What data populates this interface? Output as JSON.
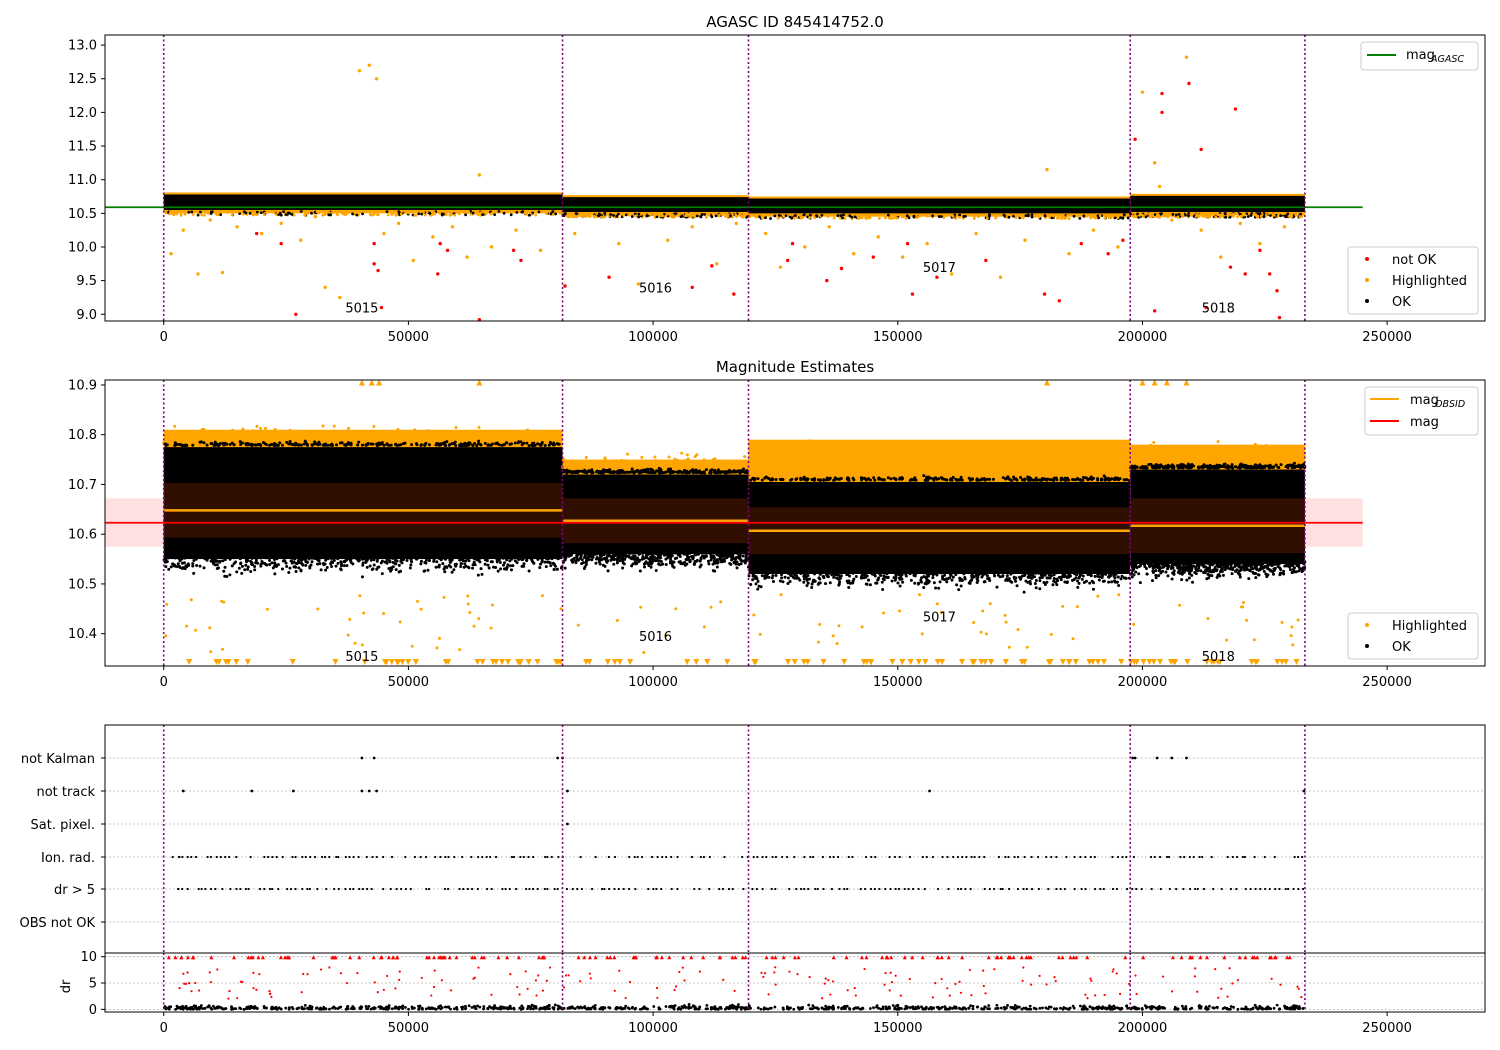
{
  "chart_data": [
    {
      "type": "scatter",
      "title": "AGASC ID 845414752.0",
      "xlim": [
        -12000,
        270000
      ],
      "ylim": [
        8.9,
        13.15
      ],
      "xticks": [
        0,
        50000,
        100000,
        150000,
        200000,
        250000
      ],
      "xtick_labels": [
        "0",
        "50000",
        "100000",
        "150000",
        "200000",
        "250000"
      ],
      "yticks": [
        9.0,
        9.5,
        10.0,
        10.5,
        11.0,
        11.5,
        12.0,
        12.5,
        13.0
      ],
      "ytick_labels": [
        "9.0",
        "9.5",
        "10.0",
        "10.5",
        "11.0",
        "11.5",
        "12.0",
        "12.5",
        "13.0"
      ],
      "obs_boundaries": [
        0,
        81500,
        119500,
        197500,
        233200
      ],
      "obs_labels": [
        {
          "text": "5015",
          "x": 40500,
          "y": 9.1
        },
        {
          "text": "5016",
          "x": 100500,
          "y": 9.4
        },
        {
          "text": "5017",
          "x": 158500,
          "y": 9.7
        },
        {
          "text": "5018",
          "x": 215500,
          "y": 9.1
        }
      ],
      "mag_agasc": 10.59,
      "mag_agasc_xrange": [
        -12000,
        245000
      ],
      "ok_bands": [
        {
          "x": [
            0,
            81500
          ],
          "lo": 10.55,
          "hi": 10.78
        },
        {
          "x": [
            81500,
            119500
          ],
          "lo": 10.52,
          "hi": 10.74
        },
        {
          "x": [
            119500,
            197500
          ],
          "lo": 10.5,
          "hi": 10.72
        },
        {
          "x": [
            197500,
            233200
          ],
          "lo": 10.52,
          "hi": 10.76
        }
      ],
      "highlighted_outliers": [
        {
          "x": 1500,
          "y": 9.9
        },
        {
          "x": 4000,
          "y": 10.25
        },
        {
          "x": 7000,
          "y": 9.6
        },
        {
          "x": 9500,
          "y": 10.4
        },
        {
          "x": 12000,
          "y": 9.62
        },
        {
          "x": 15000,
          "y": 10.3
        },
        {
          "x": 20000,
          "y": 10.2
        },
        {
          "x": 24000,
          "y": 10.35
        },
        {
          "x": 28000,
          "y": 10.1
        },
        {
          "x": 31000,
          "y": 10.45
        },
        {
          "x": 33000,
          "y": 9.4
        },
        {
          "x": 36000,
          "y": 9.25
        },
        {
          "x": 40000,
          "y": 12.62
        },
        {
          "x": 42000,
          "y": 12.7
        },
        {
          "x": 43500,
          "y": 12.5
        },
        {
          "x": 45000,
          "y": 10.2
        },
        {
          "x": 48000,
          "y": 10.35
        },
        {
          "x": 51000,
          "y": 9.8
        },
        {
          "x": 55000,
          "y": 10.15
        },
        {
          "x": 59000,
          "y": 10.3
        },
        {
          "x": 62000,
          "y": 9.85
        },
        {
          "x": 64500,
          "y": 11.07
        },
        {
          "x": 67000,
          "y": 10.0
        },
        {
          "x": 72000,
          "y": 10.25
        },
        {
          "x": 77000,
          "y": 9.95
        },
        {
          "x": 84000,
          "y": 10.2
        },
        {
          "x": 88000,
          "y": 10.45
        },
        {
          "x": 93000,
          "y": 10.05
        },
        {
          "x": 97000,
          "y": 9.45
        },
        {
          "x": 103000,
          "y": 10.1
        },
        {
          "x": 108000,
          "y": 10.3
        },
        {
          "x": 113000,
          "y": 9.75
        },
        {
          "x": 117000,
          "y": 10.35
        },
        {
          "x": 123000,
          "y": 10.2
        },
        {
          "x": 126000,
          "y": 9.7
        },
        {
          "x": 131000,
          "y": 10.0
        },
        {
          "x": 136000,
          "y": 10.3
        },
        {
          "x": 141000,
          "y": 9.9
        },
        {
          "x": 146000,
          "y": 10.15
        },
        {
          "x": 151000,
          "y": 9.85
        },
        {
          "x": 156000,
          "y": 10.05
        },
        {
          "x": 161000,
          "y": 9.6
        },
        {
          "x": 166000,
          "y": 10.2
        },
        {
          "x": 171000,
          "y": 9.55
        },
        {
          "x": 176000,
          "y": 10.1
        },
        {
          "x": 180500,
          "y": 11.15
        },
        {
          "x": 185000,
          "y": 9.9
        },
        {
          "x": 190000,
          "y": 10.25
        },
        {
          "x": 195000,
          "y": 10.0
        },
        {
          "x": 200000,
          "y": 12.3
        },
        {
          "x": 202500,
          "y": 11.25
        },
        {
          "x": 203500,
          "y": 10.9
        },
        {
          "x": 206000,
          "y": 10.4
        },
        {
          "x": 209000,
          "y": 12.82
        },
        {
          "x": 212000,
          "y": 10.25
        },
        {
          "x": 216000,
          "y": 9.85
        },
        {
          "x": 220000,
          "y": 10.35
        },
        {
          "x": 224000,
          "y": 10.05
        },
        {
          "x": 229000,
          "y": 10.3
        }
      ],
      "not_ok_points": [
        {
          "x": 19000,
          "y": 10.2
        },
        {
          "x": 24000,
          "y": 10.05
        },
        {
          "x": 27000,
          "y": 9.0
        },
        {
          "x": 43000,
          "y": 9.75
        },
        {
          "x": 43800,
          "y": 9.65
        },
        {
          "x": 44500,
          "y": 9.1
        },
        {
          "x": 43000,
          "y": 10.05
        },
        {
          "x": 56500,
          "y": 10.05
        },
        {
          "x": 56000,
          "y": 9.6
        },
        {
          "x": 58000,
          "y": 9.95
        },
        {
          "x": 64500,
          "y": 8.92
        },
        {
          "x": 71500,
          "y": 9.95
        },
        {
          "x": 73000,
          "y": 9.8
        },
        {
          "x": 82000,
          "y": 9.42
        },
        {
          "x": 91000,
          "y": 9.55
        },
        {
          "x": 108000,
          "y": 9.4
        },
        {
          "x": 112000,
          "y": 9.72
        },
        {
          "x": 116500,
          "y": 9.3
        },
        {
          "x": 127500,
          "y": 9.8
        },
        {
          "x": 128500,
          "y": 10.05
        },
        {
          "x": 135500,
          "y": 9.5
        },
        {
          "x": 138500,
          "y": 9.68
        },
        {
          "x": 145000,
          "y": 9.85
        },
        {
          "x": 152000,
          "y": 10.05
        },
        {
          "x": 153000,
          "y": 9.3
        },
        {
          "x": 158000,
          "y": 9.55
        },
        {
          "x": 168000,
          "y": 9.8
        },
        {
          "x": 180000,
          "y": 9.3
        },
        {
          "x": 183000,
          "y": 9.2
        },
        {
          "x": 187500,
          "y": 10.05
        },
        {
          "x": 193000,
          "y": 9.9
        },
        {
          "x": 196000,
          "y": 10.1
        },
        {
          "x": 198500,
          "y": 11.6
        },
        {
          "x": 202500,
          "y": 9.05
        },
        {
          "x": 204000,
          "y": 12.28
        },
        {
          "x": 204000,
          "y": 12.0
        },
        {
          "x": 209500,
          "y": 12.43
        },
        {
          "x": 212000,
          "y": 11.45
        },
        {
          "x": 213000,
          "y": 9.1
        },
        {
          "x": 218000,
          "y": 9.7
        },
        {
          "x": 219000,
          "y": 12.05
        },
        {
          "x": 221000,
          "y": 9.6
        },
        {
          "x": 224000,
          "y": 9.95
        },
        {
          "x": 226000,
          "y": 9.6
        },
        {
          "x": 227500,
          "y": 9.35
        },
        {
          "x": 228000,
          "y": 8.95
        }
      ],
      "legends": [
        {
          "position": "upper right",
          "entries": [
            {
              "label": "mag",
              "sub": "AGASC",
              "color": "#008000",
              "kind": "line"
            }
          ]
        },
        {
          "position": "lower right",
          "entries": [
            {
              "label": "not OK",
              "color": "#ff0000",
              "kind": "dot"
            },
            {
              "label": "Highlighted",
              "color": "#ffa500",
              "kind": "dot"
            },
            {
              "label": "OK",
              "color": "#000000",
              "kind": "dot"
            }
          ]
        }
      ]
    },
    {
      "type": "scatter",
      "title": "Magnitude Estimates",
      "xlim": [
        -12000,
        270000
      ],
      "ylim": [
        10.335,
        10.91
      ],
      "xticks": [
        0,
        50000,
        100000,
        150000,
        200000,
        250000
      ],
      "xtick_labels": [
        "0",
        "50000",
        "100000",
        "150000",
        "200000",
        "250000"
      ],
      "yticks": [
        10.4,
        10.5,
        10.6,
        10.7,
        10.8,
        10.9
      ],
      "ytick_labels": [
        "10.4",
        "10.5",
        "10.6",
        "10.7",
        "10.8",
        "10.9"
      ],
      "obs_boundaries": [
        0,
        81500,
        119500,
        197500,
        233200
      ],
      "obs_labels": [
        {
          "text": "5015",
          "x": 40500,
          "y": 10.355
        },
        {
          "text": "5016",
          "x": 100500,
          "y": 10.395
        },
        {
          "text": "5017",
          "x": 158500,
          "y": 10.435
        },
        {
          "text": "5018",
          "x": 215500,
          "y": 10.355
        }
      ],
      "mag": 10.623,
      "mag_band": [
        10.575,
        10.672
      ],
      "mag_xrange": [
        -12000,
        245000
      ],
      "obsid_segments": [
        {
          "x": [
            0,
            81500
          ],
          "mean": 10.648,
          "std": 0.055,
          "ok_lo": 10.52,
          "ok_hi": 10.775,
          "hl_hi": 10.84
        },
        {
          "x": [
            81500,
            119500
          ],
          "mean": 10.627,
          "std": 0.045,
          "ok_lo": 10.53,
          "ok_hi": 10.72,
          "hl_hi": 10.78
        },
        {
          "x": [
            119500,
            197500
          ],
          "mean": 10.607,
          "std": 0.047,
          "ok_lo": 10.49,
          "ok_hi": 10.705,
          "hl_hi": 10.82
        },
        {
          "x": [
            197500,
            233200
          ],
          "mean": 10.617,
          "std": 0.055,
          "ok_lo": 10.51,
          "ok_hi": 10.73,
          "hl_hi": 10.81
        }
      ],
      "legends": [
        {
          "position": "upper right",
          "entries": [
            {
              "label": "mag",
              "sub": "OBSID",
              "color": "#ffa500",
              "kind": "line"
            },
            {
              "label": "mag",
              "sub": "",
              "color": "#ff0000",
              "kind": "line"
            }
          ]
        },
        {
          "position": "lower right",
          "entries": [
            {
              "label": "Highlighted",
              "color": "#ffa500",
              "kind": "dot"
            },
            {
              "label": "OK",
              "color": "#000000",
              "kind": "dot"
            }
          ]
        }
      ]
    },
    {
      "type": "scatter",
      "title": "",
      "xlim": [
        -12000,
        270000
      ],
      "xticks": [
        0,
        50000,
        100000,
        150000,
        200000,
        250000
      ],
      "xtick_labels": [
        "0",
        "50000",
        "100000",
        "150000",
        "200000",
        "250000"
      ],
      "flag_rows": [
        "not Kalman",
        "not track",
        "Sat. pixel.",
        "Ion. rad.",
        "dr > 5",
        "OBS not OK"
      ],
      "flag_events": {
        "not Kalman": [
          40500,
          43000,
          80500,
          81500,
          198000,
          198500,
          203000,
          206000,
          209000
        ],
        "not track": [
          4000,
          18000,
          26500,
          40500,
          42000,
          43500,
          82500,
          156500,
          233000
        ],
        "Sat. pixel.": [
          82500
        ],
        "Ion. rad.": [],
        "dr > 5": [],
        "OBS not OK": []
      },
      "dr_ylim": [
        0,
        10
      ],
      "dr_yticks": [
        0,
        5,
        10
      ],
      "dr_ylabel": "dr",
      "obs_boundaries": [
        0,
        81500,
        119500,
        197500,
        233200
      ]
    }
  ]
}
